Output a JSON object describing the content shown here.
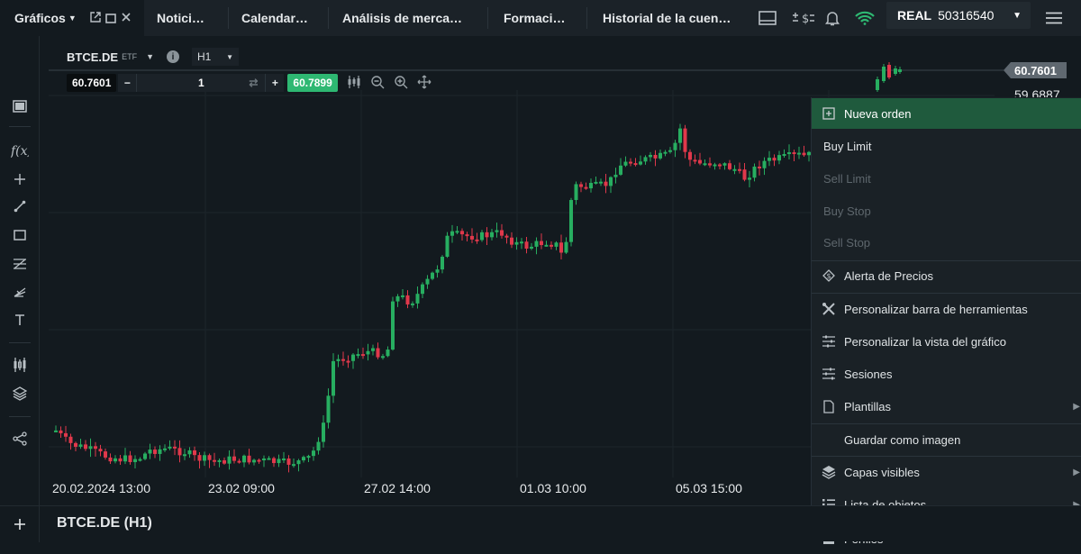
{
  "tabs": [
    {
      "label": "Gráficos"
    },
    {
      "label": "Notici…"
    },
    {
      "label": "Calendar…"
    },
    {
      "label": "Análisis de merca…"
    },
    {
      "label": "Formaci…"
    },
    {
      "label": "Historial de la cuen…"
    }
  ],
  "account": {
    "type": "REAL",
    "number": "50316540"
  },
  "symbol": {
    "name": "BTCE.DE",
    "badge": "ETF",
    "timeframe": "H1"
  },
  "trade": {
    "bid": "60.7601",
    "quantity": "1",
    "ask": "60.7899"
  },
  "price_axis": {
    "current": "60.7601",
    "second": "59.6887"
  },
  "chart_data": {
    "type": "candlestick",
    "x_ticks": [
      "20.02.2024 13:00",
      "23.02 09:00",
      "27.02 14:00",
      "01.03 10:00",
      "05.03 15:00"
    ]
  },
  "context_menu": {
    "items": [
      {
        "label": "Nueva orden",
        "icon": "plus-box-icon"
      },
      {
        "label": "Buy Limit"
      },
      {
        "label": "Sell Limit"
      },
      {
        "label": "Buy Stop"
      },
      {
        "label": "Sell Stop"
      },
      {
        "label": "Alerta de Precios",
        "icon": "price-alert-icon"
      },
      {
        "label": "Personalizar barra de herramientas",
        "icon": "tools-icon"
      },
      {
        "label": "Personalizar la vista del gráfico",
        "icon": "sliders-icon"
      },
      {
        "label": "Sesiones",
        "icon": "sessions-icon"
      },
      {
        "label": "Plantillas",
        "icon": "document-icon"
      },
      {
        "label": "Guardar como imagen"
      },
      {
        "label": "Capas visibles",
        "icon": "layers-icon"
      },
      {
        "label": "Lista de objetos",
        "icon": "list-icon"
      },
      {
        "label": "Perfiles",
        "icon": "profile-icon"
      }
    ]
  },
  "footer": {
    "title": "BTCE.DE (H1)"
  },
  "colors": {
    "up": "#27ae60",
    "down": "#e0384b",
    "accent_green": "#2eb872",
    "menu_active": "#1f5a3d"
  }
}
